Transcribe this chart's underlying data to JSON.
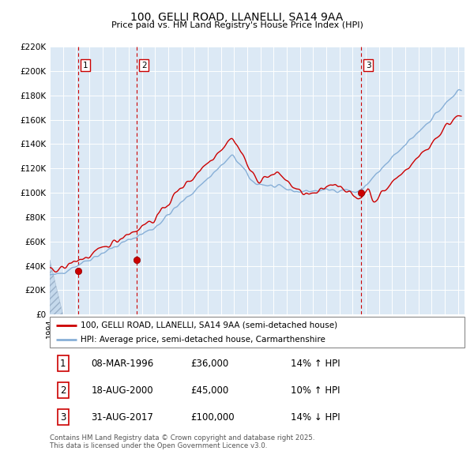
{
  "title": "100, GELLI ROAD, LLANELLI, SA14 9AA",
  "subtitle": "Price paid vs. HM Land Registry's House Price Index (HPI)",
  "sale_dates": [
    "1996-03-08",
    "2000-08-18",
    "2017-08-31"
  ],
  "sale_prices": [
    36000,
    45000,
    100000
  ],
  "sale_labels": [
    "1",
    "2",
    "3"
  ],
  "legend_line1": "100, GELLI ROAD, LLANELLI, SA14 9AA (semi-detached house)",
  "legend_line2": "HPI: Average price, semi-detached house, Carmarthenshire",
  "table_rows": [
    [
      "1",
      "08-MAR-1996",
      "£36,000",
      "14% ↑ HPI"
    ],
    [
      "2",
      "18-AUG-2000",
      "£45,000",
      "10% ↑ HPI"
    ],
    [
      "3",
      "31-AUG-2017",
      "£100,000",
      "14% ↓ HPI"
    ]
  ],
  "footnote": "Contains HM Land Registry data © Crown copyright and database right 2025.\nThis data is licensed under the Open Government Licence v3.0.",
  "line_color_red": "#cc0000",
  "line_color_blue": "#87afd7",
  "bg_color": "#dce9f5",
  "grid_color": "#ffffff",
  "dashed_line_color": "#cc0000",
  "ylim": [
    0,
    220000
  ],
  "yticks": [
    0,
    20000,
    40000,
    60000,
    80000,
    100000,
    120000,
    140000,
    160000,
    180000,
    200000,
    220000
  ]
}
